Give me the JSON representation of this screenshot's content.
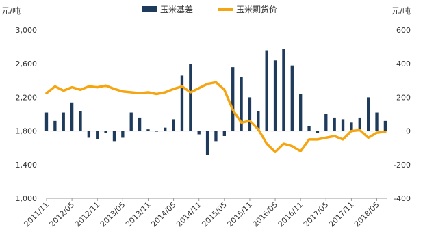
{
  "chart_data": {
    "type": "bar+line",
    "left_unit": "元/吨",
    "right_unit": "元/吨",
    "left_axis": {
      "min": 1000,
      "max": 3000,
      "ticks": [
        "1,000",
        "1,400",
        "1,800",
        "2,200",
        "2,600",
        "3,000"
      ]
    },
    "right_axis": {
      "min": -400,
      "max": 600,
      "ticks": [
        "-400",
        "-200",
        "0",
        "200",
        "400",
        "600"
      ]
    },
    "x_labels": [
      "2011/11",
      "2012/05",
      "2012/11",
      "2013/05",
      "2013/11",
      "2014/05",
      "2014/11",
      "2015/05",
      "2015/11",
      "2016/05",
      "2016/11",
      "2017/05",
      "2017/11",
      "2018/05"
    ],
    "legend": [
      {
        "name": "玉米基差",
        "color": "#1f3b5c"
      },
      {
        "name": "玉米期货价",
        "color": "#f5a511"
      }
    ],
    "series": [
      {
        "name": "玉米基差",
        "axis": "right",
        "type": "bar",
        "color": "#1f3b5c",
        "x": [
          "2011/11",
          "2012/01",
          "2012/03",
          "2012/05",
          "2012/07",
          "2012/09",
          "2012/11",
          "2013/01",
          "2013/03",
          "2013/05",
          "2013/07",
          "2013/09",
          "2013/11",
          "2014/01",
          "2014/03",
          "2014/05",
          "2014/07",
          "2014/09",
          "2014/11",
          "2015/01",
          "2015/03",
          "2015/05",
          "2015/07",
          "2015/09",
          "2015/11",
          "2016/01",
          "2016/03",
          "2016/05",
          "2016/07",
          "2016/09",
          "2016/11",
          "2017/01",
          "2017/03",
          "2017/05",
          "2017/07",
          "2017/09",
          "2017/11",
          "2018/01",
          "2018/03",
          "2018/05",
          "2018/07"
        ],
        "values": [
          110,
          60,
          110,
          170,
          120,
          -40,
          -50,
          -10,
          -60,
          -40,
          110,
          80,
          10,
          0,
          20,
          70,
          330,
          400,
          -20,
          -140,
          -60,
          -30,
          380,
          320,
          200,
          120,
          480,
          420,
          490,
          390,
          220,
          30,
          -10,
          100,
          80,
          70,
          50,
          80,
          200,
          110,
          60
        ]
      },
      {
        "name": "玉米期货价",
        "axis": "left",
        "type": "line",
        "color": "#f5a511",
        "x": [
          "2011/11",
          "2012/01",
          "2012/03",
          "2012/05",
          "2012/07",
          "2012/09",
          "2012/11",
          "2013/01",
          "2013/03",
          "2013/05",
          "2013/07",
          "2013/09",
          "2013/11",
          "2014/01",
          "2014/03",
          "2014/05",
          "2014/07",
          "2014/09",
          "2014/11",
          "2015/01",
          "2015/03",
          "2015/05",
          "2015/07",
          "2015/09",
          "2015/11",
          "2016/01",
          "2016/03",
          "2016/05",
          "2016/07",
          "2016/09",
          "2016/11",
          "2017/01",
          "2017/03",
          "2017/05",
          "2017/07",
          "2017/09",
          "2017/11",
          "2018/01",
          "2018/03",
          "2018/05",
          "2018/07"
        ],
        "values": [
          2250,
          2330,
          2280,
          2320,
          2290,
          2330,
          2320,
          2340,
          2300,
          2270,
          2260,
          2250,
          2260,
          2240,
          2260,
          2300,
          2330,
          2260,
          2310,
          2360,
          2380,
          2290,
          2050,
          1900,
          1920,
          1820,
          1650,
          1550,
          1650,
          1620,
          1560,
          1700,
          1700,
          1720,
          1740,
          1700,
          1800,
          1810,
          1720,
          1780,
          1790
        ]
      }
    ]
  }
}
